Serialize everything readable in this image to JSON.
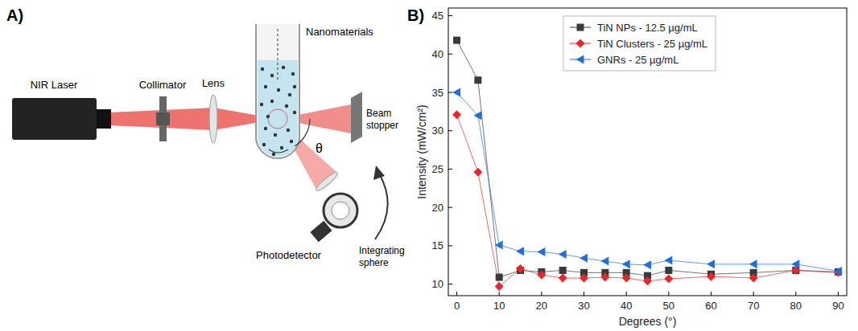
{
  "chart_data": {
    "type": "line",
    "panel_label": "B)",
    "x_label": "Degrees (°)",
    "y_label": "Intensity (mW/cm²)",
    "x": [
      0,
      5,
      10,
      15,
      20,
      25,
      30,
      35,
      40,
      45,
      50,
      60,
      70,
      80,
      90
    ],
    "xlim": [
      -2,
      92
    ],
    "xticks": [
      0,
      10,
      20,
      30,
      40,
      50,
      60,
      70,
      80,
      90
    ],
    "ylim": [
      8.5,
      46
    ],
    "yticks": [
      10,
      15,
      20,
      25,
      30,
      35,
      40,
      45
    ],
    "legend": "upper right",
    "series": [
      {
        "name": "TiN NPs - 12.5 µg/mL",
        "color": "#3a3a3a",
        "marker": "square",
        "values": [
          41.8,
          36.6,
          10.9,
          11.8,
          11.6,
          11.8,
          11.5,
          11.5,
          11.5,
          11.1,
          11.8,
          11.3,
          11.5,
          11.8,
          11.6
        ]
      },
      {
        "name": "TiN Clusters - 25 µg/mL",
        "color": "#e8262a",
        "marker": "diamond",
        "values": [
          32.1,
          24.6,
          9.7,
          12.0,
          11.2,
          10.8,
          10.8,
          10.9,
          10.8,
          10.4,
          10.7,
          11.0,
          10.8,
          11.8,
          11.5
        ]
      },
      {
        "name": "GNRs - 25 µg/mL",
        "color": "#1f6fe0",
        "marker": "triangle-left",
        "values": [
          35.0,
          32.0,
          15.1,
          14.3,
          14.2,
          13.9,
          13.4,
          13.0,
          12.6,
          12.5,
          13.1,
          12.6,
          12.6,
          12.6,
          11.7
        ]
      }
    ]
  },
  "diagram": {
    "panel_label": "A)",
    "labels": {
      "laser": "NIR Laser",
      "collimator": "Collimator",
      "lens": "Lens",
      "sample": "Nanomaterials",
      "angle": "θ",
      "stopper": "Beam stopper",
      "detector": "Photodetector",
      "sphere": "Integrating sphere"
    }
  }
}
